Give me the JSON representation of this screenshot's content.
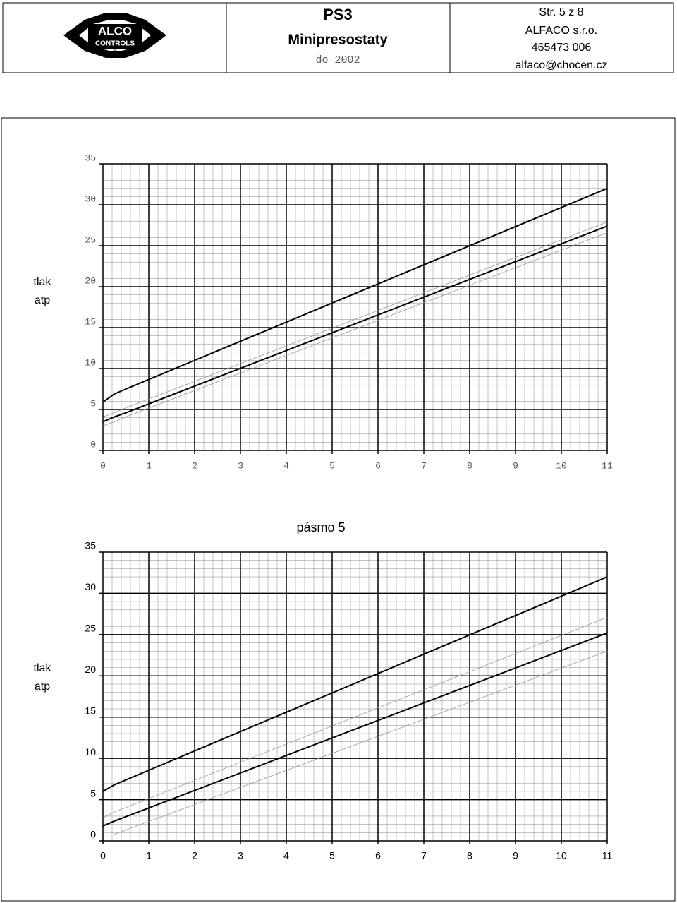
{
  "header": {
    "logo_top": "ALCO",
    "logo_bottom": "CONTROLS",
    "logo_mark": "®",
    "product": "PS3",
    "name": "Minipresostaty",
    "date": "do 2002",
    "page": "Str. 5 z 8",
    "company": "ALFACO s.r.o.",
    "phone": "465473 006",
    "email": "alfaco@chocen.cz"
  },
  "chart_data": [
    {
      "type": "line",
      "ylabel": [
        "tlak",
        "atp"
      ],
      "x": [
        0,
        0.25,
        0.5,
        11
      ],
      "series": [
        {
          "color": "#000000",
          "linewidth": 2,
          "values": [
            5.9,
            6.9,
            7.5,
            32.0
          ]
        },
        {
          "color": "#000000",
          "linewidth": 2,
          "values": [
            3.5,
            4.1,
            4.6,
            27.4
          ]
        },
        {
          "color": "#999999",
          "linewidth": 0.8,
          "values": [
            4.1,
            4.6,
            5.2,
            27.9
          ]
        },
        {
          "color": "#999999",
          "linewidth": 0.8,
          "values": [
            3.0,
            3.5,
            4.1,
            26.6
          ]
        }
      ],
      "xlim": [
        0,
        11
      ],
      "xticks": [
        0,
        1,
        2,
        3,
        4,
        5,
        6,
        7,
        8,
        9,
        10,
        11
      ],
      "ylim": [
        0,
        35
      ],
      "yticks": [
        0,
        5,
        10,
        15,
        20,
        25,
        30,
        35
      ],
      "grid": true,
      "minor_grid": {
        "x": 0.2,
        "y": 1
      }
    },
    {
      "type": "line",
      "title": "pásmo 5",
      "ylabel": [
        "tlak",
        "atp"
      ],
      "x": [
        0,
        0.25,
        11
      ],
      "series": [
        {
          "color": "#000000",
          "linewidth": 2,
          "values": [
            6.0,
            6.8,
            32.0
          ]
        },
        {
          "color": "#000000",
          "linewidth": 2,
          "values": [
            1.8,
            2.4,
            25.2
          ]
        },
        {
          "color": "#999999",
          "linewidth": 0.8,
          "values": [
            2.8,
            3.5,
            27.1
          ]
        },
        {
          "color": "#999999",
          "linewidth": 0.8,
          "values": [
            null,
            0.8,
            23.0
          ]
        }
      ],
      "xlim": [
        0,
        11
      ],
      "xticks": [
        0,
        1,
        2,
        3,
        4,
        5,
        6,
        7,
        8,
        9,
        10,
        11
      ],
      "ylim": [
        0,
        35
      ],
      "yticks": [
        0,
        5,
        10,
        15,
        20,
        25,
        30,
        35
      ],
      "grid": true,
      "minor_grid": {
        "x": 0.2,
        "y": 1
      }
    }
  ]
}
